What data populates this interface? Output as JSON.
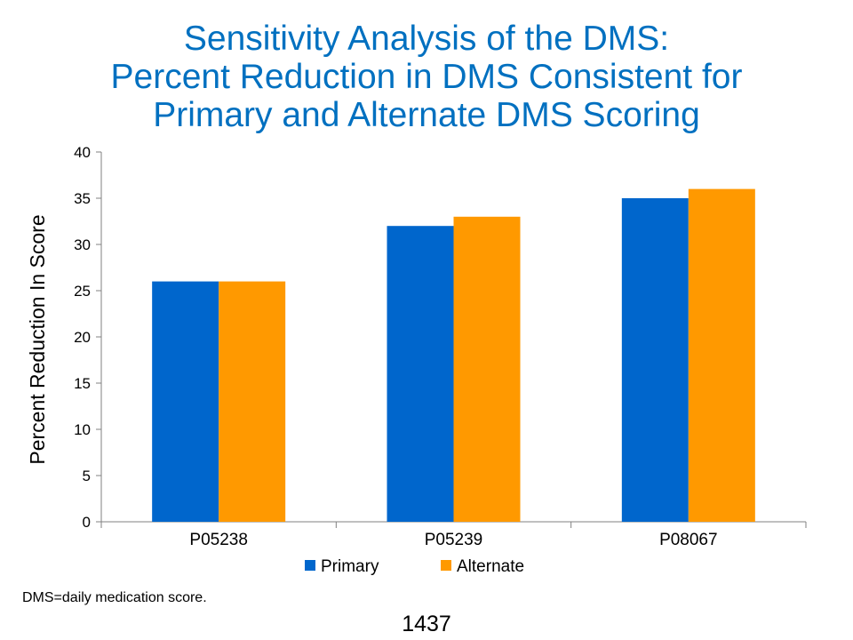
{
  "title_lines": [
    "Sensitivity Analysis of the DMS:",
    "Percent Reduction in DMS Consistent for",
    "Primary and Alternate DMS Scoring"
  ],
  "footnote": "DMS=daily medication score.",
  "page_number": "1437",
  "colors": {
    "title": "#0070C0",
    "primary": "#0066CC",
    "alternate": "#FF9900"
  },
  "chart_data": {
    "type": "bar",
    "title": "Sensitivity Analysis of the DMS: Percent Reduction in DMS Consistent for Primary and Alternate DMS Scoring",
    "xlabel": "",
    "ylabel": "Percent Reduction In Score",
    "categories": [
      "P05238",
      "P05239",
      "P08067"
    ],
    "series": [
      {
        "name": "Primary",
        "values": [
          26,
          32,
          35
        ]
      },
      {
        "name": "Alternate",
        "values": [
          26,
          33,
          36
        ]
      }
    ],
    "ylim": [
      0,
      40
    ],
    "yticks": [
      0,
      5,
      10,
      15,
      20,
      25,
      30,
      35,
      40
    ],
    "grid": false,
    "legend": "bottom"
  }
}
